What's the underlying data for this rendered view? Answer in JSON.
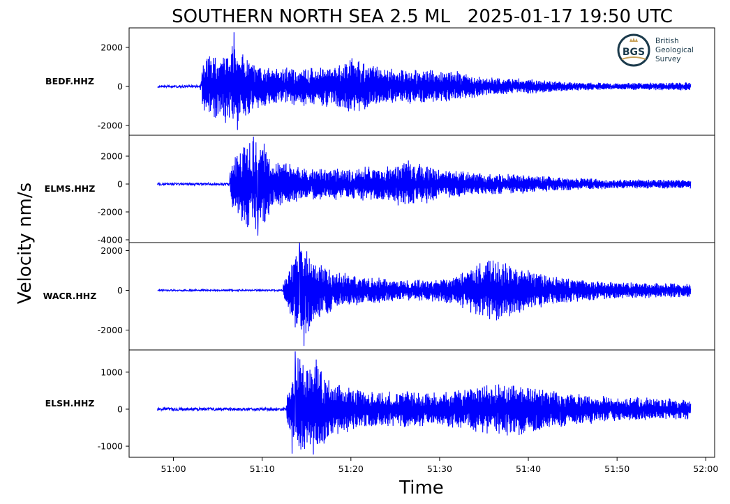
{
  "chart_data": {
    "type": "line",
    "title": "SOUTHERN NORTH SEA 2.5 ML   2025-01-17 19:50 UTC",
    "xlabel": "Time",
    "ylabel": "Velocity nm/s",
    "x_range": [
      "50:55",
      "52:01"
    ],
    "x_ticks": [
      "51:00",
      "51:10",
      "51:20",
      "51:30",
      "51:40",
      "51:50",
      "52:00"
    ],
    "trace_start": "50:58.2",
    "trace_end": "51:58.3",
    "line_color": "#0000ff",
    "grid": false,
    "legend": "none",
    "series": [
      {
        "name": "BEDF.HHZ",
        "ylim": [
          -2500,
          3000
        ],
        "yticks": [
          2000,
          0,
          -2000
        ],
        "onset": "51:03.2",
        "max": 2780,
        "min": -2230,
        "envelope_x": [
          "50:58.2",
          "51:03.0",
          "51:03.2",
          "51:04",
          "51:05",
          "51:06",
          "51:06.8",
          "51:08",
          "51:09",
          "51:10",
          "51:12",
          "51:15",
          "51:18",
          "51:20",
          "51:25",
          "51:28",
          "51:32",
          "51:36",
          "51:40",
          "51:45",
          "51:50",
          "51:58.3"
        ],
        "envelope_y": [
          60,
          60,
          1100,
          1500,
          1500,
          1800,
          2000,
          1500,
          1100,
          900,
          850,
          900,
          1000,
          1300,
          800,
          800,
          700,
          400,
          350,
          200,
          150,
          200
        ]
      },
      {
        "name": "ELMS.HHZ",
        "ylim": [
          -4200,
          3500
        ],
        "yticks": [
          2000,
          0,
          -2000,
          -4000
        ],
        "onset": "51:06.4",
        "max": 3400,
        "min": -3700,
        "envelope_x": [
          "50:58.2",
          "51:06.3",
          "51:06.4",
          "51:07",
          "51:08",
          "51:09",
          "51:10",
          "51:11",
          "51:12",
          "51:15",
          "51:20",
          "51:24",
          "51:26",
          "51:30",
          "51:35",
          "51:40",
          "51:45",
          "51:50",
          "51:58.3"
        ],
        "envelope_y": [
          90,
          90,
          1300,
          2000,
          2800,
          3000,
          2800,
          2000,
          1500,
          1000,
          1100,
          1200,
          1600,
          1000,
          700,
          600,
          400,
          300,
          300
        ]
      },
      {
        "name": "WACR.HHZ",
        "ylim": [
          -3000,
          2400
        ],
        "yticks": [
          2000,
          0,
          -2000
        ],
        "onset": "51:12.4",
        "max": 2400,
        "min": -2800,
        "envelope_x": [
          "50:58.2",
          "51:12.3",
          "51:12.4",
          "51:13",
          "51:14",
          "51:15",
          "51:16",
          "51:18",
          "51:20",
          "51:25",
          "51:30",
          "51:33",
          "51:36",
          "51:38",
          "51:42",
          "51:46",
          "51:50",
          "51:58.3"
        ],
        "envelope_y": [
          40,
          40,
          400,
          1000,
          2000,
          2200,
          1300,
          1000,
          700,
          500,
          500,
          900,
          1500,
          1200,
          700,
          500,
          400,
          300
        ]
      },
      {
        "name": "ELSH.HHZ",
        "ylim": [
          -1300,
          1600
        ],
        "yticks": [
          1000,
          0,
          -1000
        ],
        "onset": "51:12.8",
        "max": 1560,
        "min": -1200,
        "envelope_x": [
          "50:58.2",
          "51:12.7",
          "51:12.8",
          "51:13.5",
          "51:14",
          "51:15",
          "51:16",
          "51:17",
          "51:19",
          "51:22",
          "51:26",
          "51:30",
          "51:35",
          "51:38",
          "51:42",
          "51:46",
          "51:50",
          "51:58.3"
        ],
        "envelope_y": [
          40,
          40,
          400,
          800,
          1300,
          1000,
          1200,
          900,
          600,
          450,
          450,
          400,
          600,
          700,
          500,
          400,
          300,
          250
        ]
      }
    ]
  },
  "logo": {
    "mark": "BGS",
    "line1": "British",
    "line2": "Geological",
    "line3": "Survey"
  }
}
